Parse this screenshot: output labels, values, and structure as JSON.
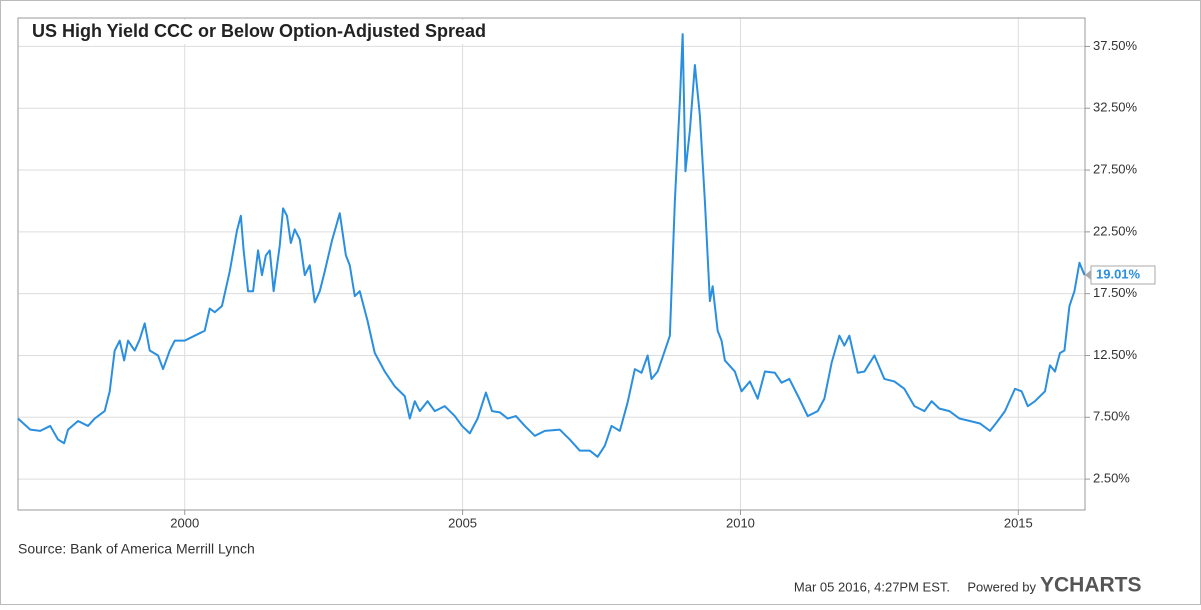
{
  "chart_data": {
    "type": "line",
    "title": "US High Yield CCC or Below Option-Adjusted Spread",
    "source": "Source: Bank of America Merrill Lynch",
    "timestamp": "Mar 05 2016, 4:27PM EST.",
    "powered_by": "Powered by",
    "brand": "YCHARTS",
    "color": "#2a8fe0",
    "grid": true,
    "xlim": [
      1997.0,
      2016.2
    ],
    "ylim": [
      0,
      39.8
    ],
    "xticks": [
      2000,
      2005,
      2010,
      2015
    ],
    "yticks": [
      {
        "value": 2.5,
        "label": "2.50%"
      },
      {
        "value": 7.5,
        "label": "7.50%"
      },
      {
        "value": 12.5,
        "label": "12.50%"
      },
      {
        "value": 17.5,
        "label": "17.50%"
      },
      {
        "value": 22.5,
        "label": "22.50%"
      },
      {
        "value": 27.5,
        "label": "27.50%"
      },
      {
        "value": 32.5,
        "label": "32.50%"
      },
      {
        "value": 37.5,
        "label": "37.50%"
      }
    ],
    "x": [
      1997.0,
      1997.22,
      1997.4,
      1997.58,
      1997.72,
      1997.83,
      1997.9,
      1998.08,
      1998.26,
      1998.38,
      1998.56,
      1998.65,
      1998.74,
      1998.83,
      1998.91,
      1998.98,
      1999.1,
      1999.19,
      1999.28,
      1999.37,
      1999.52,
      1999.61,
      1999.73,
      1999.82,
      2000.0,
      2000.18,
      2000.36,
      2000.45,
      2000.54,
      2000.67,
      2000.81,
      2000.94,
      2001.01,
      2001.06,
      2001.14,
      2001.23,
      2001.32,
      2001.39,
      2001.46,
      2001.53,
      2001.6,
      2001.71,
      2001.77,
      2001.84,
      2001.91,
      2001.98,
      2002.07,
      2002.16,
      2002.25,
      2002.34,
      2002.43,
      2002.52,
      2002.65,
      2002.79,
      2002.9,
      2002.97,
      2003.06,
      2003.15,
      2003.29,
      2003.42,
      2003.6,
      2003.78,
      2003.96,
      2004.05,
      2004.14,
      2004.23,
      2004.37,
      2004.5,
      2004.68,
      2004.86,
      2004.99,
      2005.13,
      2005.27,
      2005.42,
      2005.53,
      2005.67,
      2005.81,
      2005.96,
      2006.12,
      2006.3,
      2006.48,
      2006.75,
      2006.93,
      2007.11,
      2007.29,
      2007.43,
      2007.56,
      2007.68,
      2007.83,
      2007.97,
      2008.1,
      2008.22,
      2008.33,
      2008.4,
      2008.51,
      2008.64,
      2008.73,
      2008.82,
      2008.91,
      2008.96,
      2009.01,
      2009.09,
      2009.18,
      2009.27,
      2009.36,
      2009.45,
      2009.5,
      2009.59,
      2009.66,
      2009.72,
      2009.9,
      2010.02,
      2010.17,
      2010.31,
      2010.44,
      2010.62,
      2010.74,
      2010.88,
      2011.06,
      2011.21,
      2011.39,
      2011.51,
      2011.64,
      2011.78,
      2011.87,
      2011.96,
      2012.11,
      2012.23,
      2012.41,
      2012.59,
      2012.77,
      2012.95,
      2013.13,
      2013.31,
      2013.44,
      2013.58,
      2013.76,
      2013.94,
      2014.13,
      2014.31,
      2014.49,
      2014.63,
      2014.76,
      2014.94,
      2015.06,
      2015.17,
      2015.3,
      2015.48,
      2015.57,
      2015.66,
      2015.75,
      2015.83,
      2015.92,
      2016.01,
      2016.1,
      2016.19
    ],
    "values": [
      7.4,
      6.5,
      6.4,
      6.8,
      5.7,
      5.4,
      6.5,
      7.2,
      6.8,
      7.4,
      8.0,
      9.6,
      12.9,
      13.7,
      12.1,
      13.7,
      12.9,
      13.8,
      15.1,
      12.9,
      12.5,
      11.4,
      12.9,
      13.7,
      13.7,
      14.1,
      14.5,
      16.3,
      16.0,
      16.5,
      19.3,
      22.6,
      23.8,
      21.0,
      17.7,
      17.7,
      21.0,
      19.0,
      20.6,
      21.0,
      17.7,
      21.4,
      24.4,
      23.8,
      21.6,
      22.7,
      21.9,
      19.0,
      19.8,
      16.8,
      17.7,
      19.3,
      21.8,
      24.0,
      20.6,
      19.8,
      17.3,
      17.7,
      15.3,
      12.7,
      11.2,
      10.0,
      9.2,
      7.4,
      8.8,
      8.0,
      8.8,
      8.0,
      8.4,
      7.6,
      6.8,
      6.2,
      7.4,
      9.5,
      8.0,
      7.9,
      7.4,
      7.6,
      6.8,
      6.0,
      6.4,
      6.5,
      5.7,
      4.8,
      4.8,
      4.3,
      5.2,
      6.8,
      6.4,
      8.7,
      11.4,
      11.1,
      12.5,
      10.6,
      11.2,
      12.9,
      14.1,
      25.0,
      33.1,
      38.5,
      27.4,
      30.7,
      36.0,
      31.9,
      25.0,
      16.9,
      18.1,
      14.5,
      13.7,
      12.1,
      11.2,
      9.6,
      10.4,
      9.0,
      11.2,
      11.1,
      10.3,
      10.6,
      9.0,
      7.6,
      8.0,
      9.0,
      11.9,
      14.1,
      13.3,
      14.1,
      11.1,
      11.2,
      12.5,
      10.6,
      10.4,
      9.8,
      8.4,
      8.0,
      8.8,
      8.2,
      8.0,
      7.4,
      7.2,
      7.0,
      6.4,
      7.2,
      8.0,
      9.8,
      9.6,
      8.4,
      8.8,
      9.6,
      11.7,
      11.2,
      12.7,
      12.9,
      16.5,
      17.7,
      20.0,
      19.01
    ],
    "last_label": "19.01%"
  }
}
